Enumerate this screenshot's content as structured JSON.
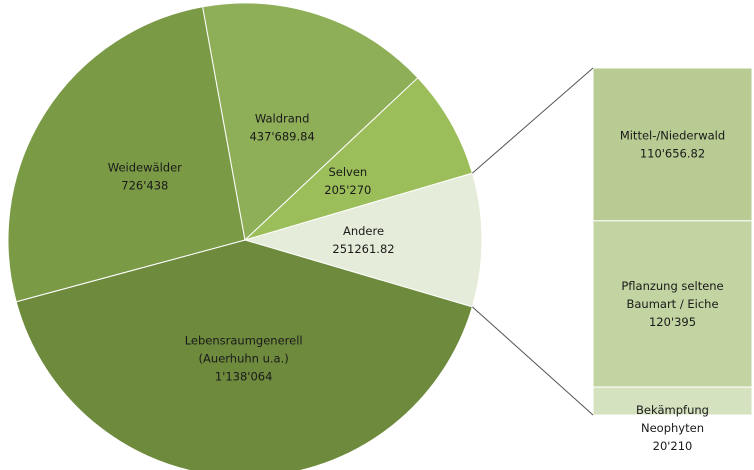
{
  "chart_data": {
    "type": "pie-of-bar",
    "categories": [
      [
        "Andere"
      ],
      [
        "Lebensraumgenerell",
        "(Auerhuhn u.a.)"
      ],
      [
        "Weidewälder"
      ],
      [
        "Waldrand"
      ],
      [
        "Selven"
      ]
    ],
    "values": [
      251261.82,
      1138064,
      726438,
      437689.84,
      205270
    ],
    "value_labels": [
      "251261.82",
      "1'138'064",
      "726'438",
      "437'689.84",
      "205'270"
    ],
    "colors": [
      "#e5ecd9",
      "#6d8a3d",
      "#7a9a46",
      "#8eae58",
      "#9cbe5a"
    ],
    "bar": {
      "categories": [
        [
          "Mittel-/Niederwald"
        ],
        [
          "Pflanzung seltene",
          "Baumart / Eiche"
        ],
        [
          "Bekämpfung",
          "Neophyten"
        ]
      ],
      "values": [
        110656.82,
        120395,
        20210
      ],
      "value_labels": [
        "110'656.82",
        "120'395",
        "20'210"
      ],
      "colors": [
        "#b7cb92",
        "#c2d4a1",
        "#d5e2c0"
      ]
    }
  }
}
